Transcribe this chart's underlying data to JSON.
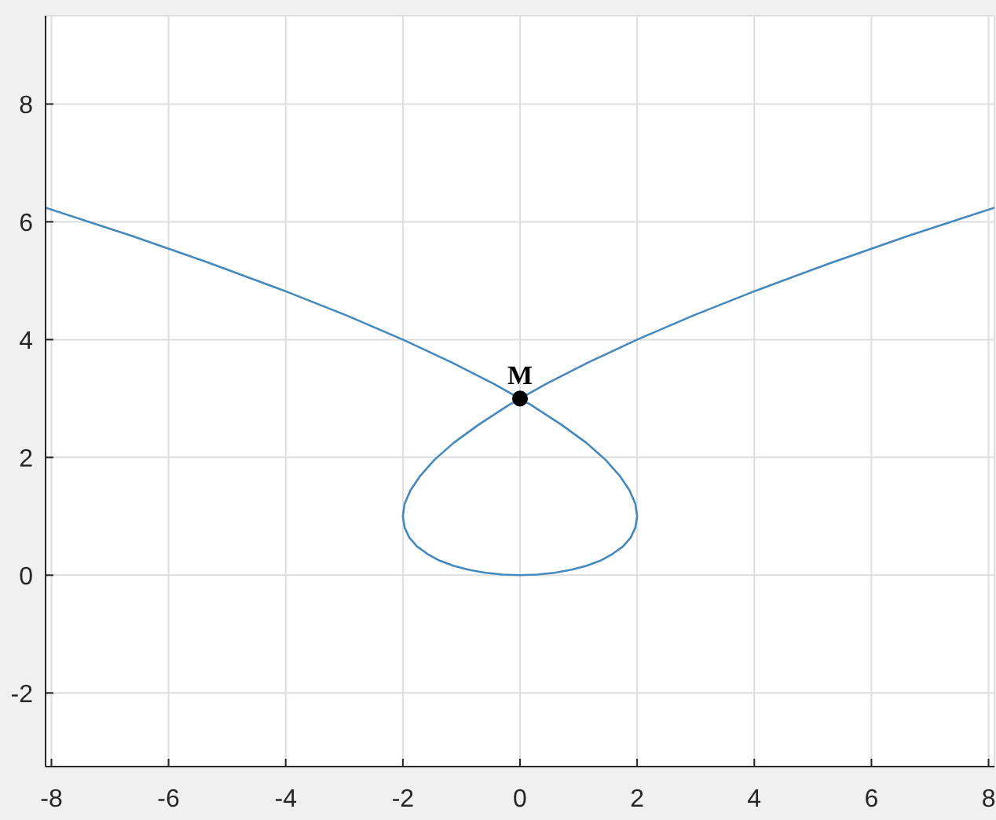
{
  "chart_data": {
    "type": "line",
    "series": [
      {
        "color": "#4389bd",
        "x": [
          -8.1,
          -6.62,
          -5.27,
          -4.05,
          -2.96,
          -2.0,
          -1.16,
          -0.43,
          0.19,
          0.7,
          1.13,
          1.46,
          1.7,
          1.87,
          1.97,
          2.0,
          1.97,
          1.89,
          1.76,
          1.58,
          1.38,
          1.14,
          0.87,
          0.59,
          0.3,
          0,
          -0.3,
          -0.59,
          -0.87,
          -1.14,
          -1.38,
          -1.58,
          -1.76,
          -1.89,
          -1.97,
          -2.0,
          -1.97,
          -1.87,
          -1.7,
          -1.46,
          -1.13,
          -0.7,
          -0.19,
          0.43,
          1.16,
          2.0,
          2.96,
          4.05,
          5.27,
          6.62,
          8.1
        ],
        "values": [
          6.24,
          5.76,
          5.29,
          4.84,
          4.41,
          4.0,
          3.61,
          3.24,
          2.89,
          2.56,
          2.25,
          1.96,
          1.69,
          1.44,
          1.21,
          1.0,
          0.81,
          0.64,
          0.49,
          0.36,
          0.25,
          0.16,
          0.09,
          0.04,
          0.01,
          0,
          0.01,
          0.04,
          0.09,
          0.16,
          0.25,
          0.36,
          0.49,
          0.64,
          0.81,
          1.0,
          1.21,
          1.44,
          1.69,
          1.96,
          2.25,
          2.56,
          2.89,
          3.24,
          3.61,
          4.0,
          4.41,
          4.84,
          5.29,
          5.76,
          6.24
        ]
      },
      {
        "type": "scatter",
        "color": "#000000",
        "marker": "circle",
        "x": [
          0
        ],
        "values": [
          3
        ]
      }
    ],
    "xlim": [
      -8.1,
      8.1
    ],
    "ylim": [
      -3.25,
      9.5
    ],
    "xticks": [
      -8,
      -6,
      -4,
      -2,
      0,
      2,
      4,
      6,
      8
    ],
    "yticks": [
      -2,
      0,
      2,
      4,
      6,
      8
    ],
    "grid": true,
    "marker": "none",
    "line_style": "solid",
    "annotations": [
      {
        "text": "M",
        "x": 0,
        "y": 3
      }
    ]
  }
}
